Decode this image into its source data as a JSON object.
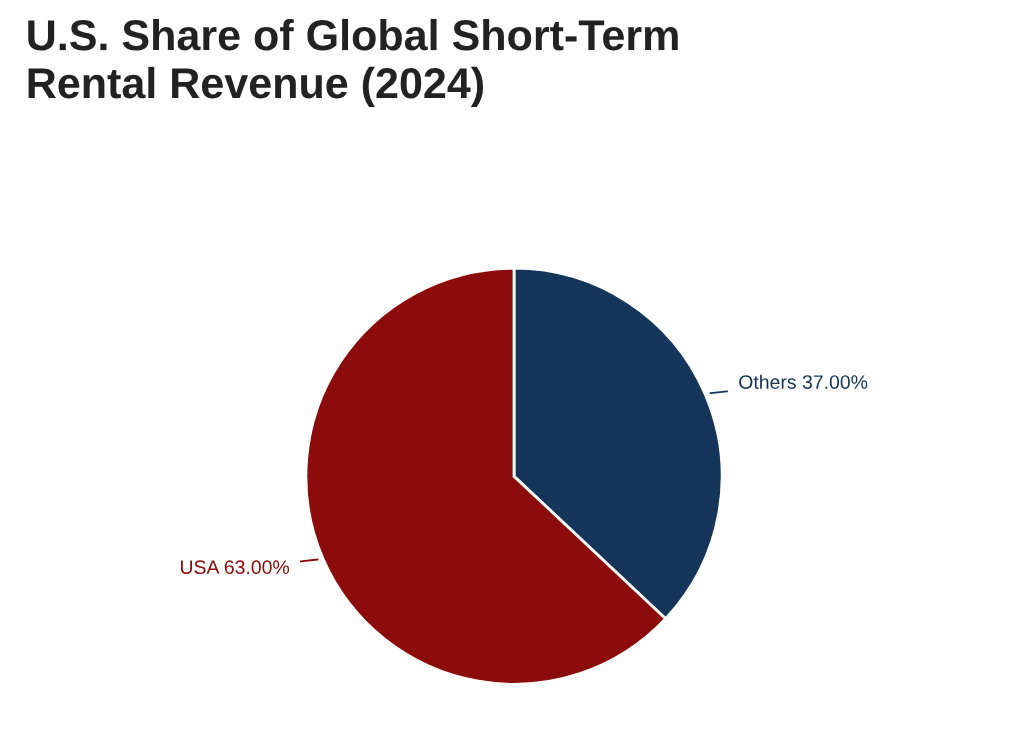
{
  "chart_data": {
    "type": "pie",
    "title": "U.S. Share of Global Short-Term\nRental Revenue (2024)",
    "categories": [
      "Others",
      "USA"
    ],
    "values": [
      37,
      63
    ],
    "colors": [
      "#15365a",
      "#8c0b0b"
    ],
    "value_labels": [
      "37.00%",
      "63.00%"
    ],
    "legend": false
  }
}
